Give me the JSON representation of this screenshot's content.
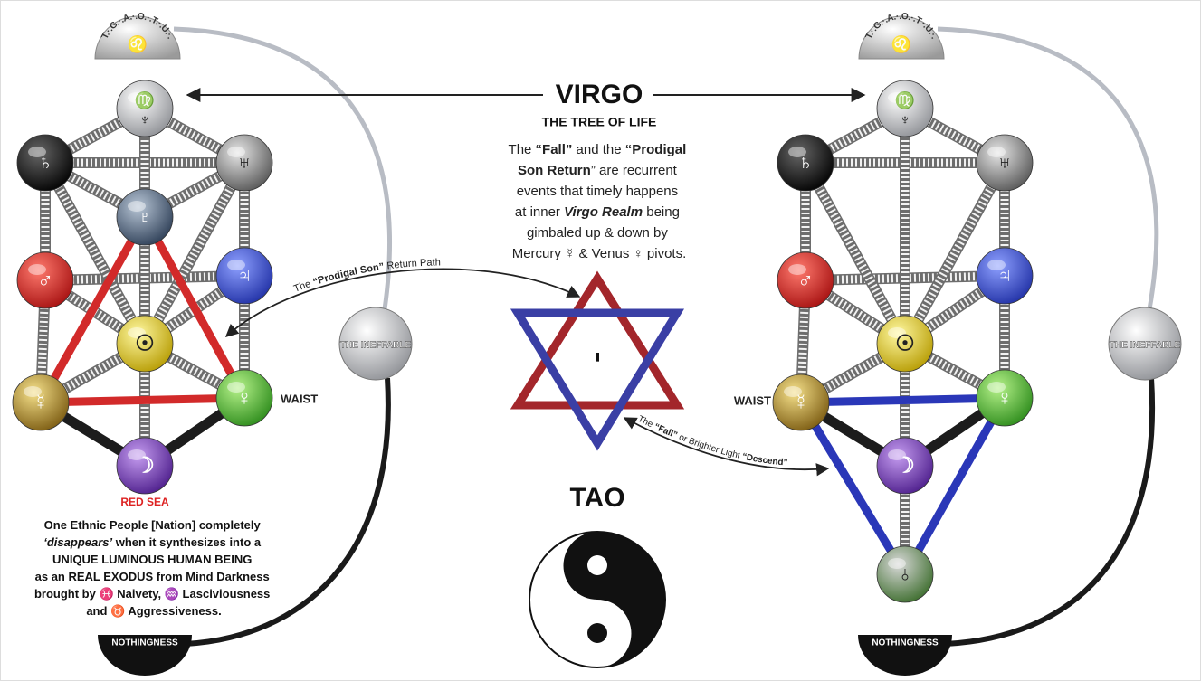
{
  "domes": [
    {
      "text": "T.·.G.·.A.·.O.·.T.·.U.·.",
      "symbol": "♌"
    },
    {
      "text": "T.·.G.·.A.·.O.·.T.·.U.·.",
      "symbol": "♌"
    }
  ],
  "left_tree": {
    "nodes": [
      [
        "♍",
        "♆"
      ],
      [
        "♄"
      ],
      [
        "♅"
      ],
      [
        "♇"
      ],
      [
        "♂"
      ],
      [
        "♃"
      ],
      [
        "☉"
      ],
      [
        "☿"
      ],
      [
        "♀"
      ],
      [
        "☽"
      ]
    ],
    "labels": {
      "waist": "WAIST",
      "red_sea": "RED SEA",
      "ineffable": "THE INEFFABLE",
      "nothingness": "NOTHINGNESS"
    }
  },
  "right_tree": {
    "nodes": [
      [
        "♍",
        "♆"
      ],
      [
        "♄"
      ],
      [
        "♅"
      ],
      [
        "♂"
      ],
      [
        "♃"
      ],
      [
        "☉"
      ],
      [
        "☿"
      ],
      [
        "♀"
      ],
      [
        "☽"
      ],
      [
        "♁"
      ]
    ],
    "labels": {
      "waist": "WAIST",
      "ineffable": "THE INEFFABLE",
      "nothingness": "NOTHINGNESS"
    }
  },
  "center": {
    "title": "VIRGO",
    "subtitle": "THE TREE OF LIFE",
    "description": [
      [
        "The ",
        "“Fall”",
        " and the ",
        "“Prodigal"
      ],
      [
        "Son Return",
        "” are recurrent"
      ],
      [
        "events that timely happens"
      ],
      [
        "at inner ",
        "Virgo Realm",
        " being"
      ],
      [
        "gimbaled up & down by"
      ],
      [
        "Mercury ☿ & Venus ♀ pivots."
      ]
    ],
    "star_letter": "י",
    "path_label": [
      "The ",
      "“Prodigal",
      " Son”",
      " Return Path"
    ],
    "fall_label": [
      "The ",
      "“Fall”",
      " or Brighter Light ",
      "“Descend”"
    ],
    "tao": "TAO"
  },
  "left_text": [
    [
      "One Ethnic People [Nation] completely"
    ],
    [
      "‘disappears’",
      " when it synthesizes into a"
    ],
    [
      "UNIQUE LUMINOUS HUMAN BEING"
    ],
    [
      "as an REAL EXODUS from Mind Darkness"
    ],
    [
      "brought by ♓ Naivety, ♒ Lasciviousness"
    ],
    [
      "and ♉ Aggressiveness."
    ]
  ]
}
